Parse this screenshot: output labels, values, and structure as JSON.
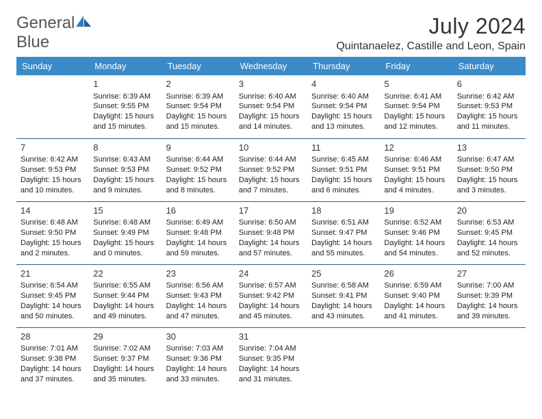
{
  "logo": {
    "line1": "General",
    "line2": "Blue"
  },
  "title": "July 2024",
  "location": "Quintanaelez, Castille and Leon, Spain",
  "colors": {
    "header_bg": "#3b8bc9",
    "header_fg": "#ffffff",
    "rule": "#2a5e8a",
    "logo_blue": "#2f7fbf"
  },
  "weekdays": [
    "Sunday",
    "Monday",
    "Tuesday",
    "Wednesday",
    "Thursday",
    "Friday",
    "Saturday"
  ],
  "weeks": [
    [
      {
        "day": "",
        "lines": []
      },
      {
        "day": "1",
        "lines": [
          "Sunrise: 6:39 AM",
          "Sunset: 9:55 PM",
          "Daylight: 15 hours and 15 minutes."
        ]
      },
      {
        "day": "2",
        "lines": [
          "Sunrise: 6:39 AM",
          "Sunset: 9:54 PM",
          "Daylight: 15 hours and 15 minutes."
        ]
      },
      {
        "day": "3",
        "lines": [
          "Sunrise: 6:40 AM",
          "Sunset: 9:54 PM",
          "Daylight: 15 hours and 14 minutes."
        ]
      },
      {
        "day": "4",
        "lines": [
          "Sunrise: 6:40 AM",
          "Sunset: 9:54 PM",
          "Daylight: 15 hours and 13 minutes."
        ]
      },
      {
        "day": "5",
        "lines": [
          "Sunrise: 6:41 AM",
          "Sunset: 9:54 PM",
          "Daylight: 15 hours and 12 minutes."
        ]
      },
      {
        "day": "6",
        "lines": [
          "Sunrise: 6:42 AM",
          "Sunset: 9:53 PM",
          "Daylight: 15 hours and 11 minutes."
        ]
      }
    ],
    [
      {
        "day": "7",
        "lines": [
          "Sunrise: 6:42 AM",
          "Sunset: 9:53 PM",
          "Daylight: 15 hours and 10 minutes."
        ]
      },
      {
        "day": "8",
        "lines": [
          "Sunrise: 6:43 AM",
          "Sunset: 9:53 PM",
          "Daylight: 15 hours and 9 minutes."
        ]
      },
      {
        "day": "9",
        "lines": [
          "Sunrise: 6:44 AM",
          "Sunset: 9:52 PM",
          "Daylight: 15 hours and 8 minutes."
        ]
      },
      {
        "day": "10",
        "lines": [
          "Sunrise: 6:44 AM",
          "Sunset: 9:52 PM",
          "Daylight: 15 hours and 7 minutes."
        ]
      },
      {
        "day": "11",
        "lines": [
          "Sunrise: 6:45 AM",
          "Sunset: 9:51 PM",
          "Daylight: 15 hours and 6 minutes."
        ]
      },
      {
        "day": "12",
        "lines": [
          "Sunrise: 6:46 AM",
          "Sunset: 9:51 PM",
          "Daylight: 15 hours and 4 minutes."
        ]
      },
      {
        "day": "13",
        "lines": [
          "Sunrise: 6:47 AM",
          "Sunset: 9:50 PM",
          "Daylight: 15 hours and 3 minutes."
        ]
      }
    ],
    [
      {
        "day": "14",
        "lines": [
          "Sunrise: 6:48 AM",
          "Sunset: 9:50 PM",
          "Daylight: 15 hours and 2 minutes."
        ]
      },
      {
        "day": "15",
        "lines": [
          "Sunrise: 6:48 AM",
          "Sunset: 9:49 PM",
          "Daylight: 15 hours and 0 minutes."
        ]
      },
      {
        "day": "16",
        "lines": [
          "Sunrise: 6:49 AM",
          "Sunset: 9:48 PM",
          "Daylight: 14 hours and 59 minutes."
        ]
      },
      {
        "day": "17",
        "lines": [
          "Sunrise: 6:50 AM",
          "Sunset: 9:48 PM",
          "Daylight: 14 hours and 57 minutes."
        ]
      },
      {
        "day": "18",
        "lines": [
          "Sunrise: 6:51 AM",
          "Sunset: 9:47 PM",
          "Daylight: 14 hours and 55 minutes."
        ]
      },
      {
        "day": "19",
        "lines": [
          "Sunrise: 6:52 AM",
          "Sunset: 9:46 PM",
          "Daylight: 14 hours and 54 minutes."
        ]
      },
      {
        "day": "20",
        "lines": [
          "Sunrise: 6:53 AM",
          "Sunset: 9:45 PM",
          "Daylight: 14 hours and 52 minutes."
        ]
      }
    ],
    [
      {
        "day": "21",
        "lines": [
          "Sunrise: 6:54 AM",
          "Sunset: 9:45 PM",
          "Daylight: 14 hours and 50 minutes."
        ]
      },
      {
        "day": "22",
        "lines": [
          "Sunrise: 6:55 AM",
          "Sunset: 9:44 PM",
          "Daylight: 14 hours and 49 minutes."
        ]
      },
      {
        "day": "23",
        "lines": [
          "Sunrise: 6:56 AM",
          "Sunset: 9:43 PM",
          "Daylight: 14 hours and 47 minutes."
        ]
      },
      {
        "day": "24",
        "lines": [
          "Sunrise: 6:57 AM",
          "Sunset: 9:42 PM",
          "Daylight: 14 hours and 45 minutes."
        ]
      },
      {
        "day": "25",
        "lines": [
          "Sunrise: 6:58 AM",
          "Sunset: 9:41 PM",
          "Daylight: 14 hours and 43 minutes."
        ]
      },
      {
        "day": "26",
        "lines": [
          "Sunrise: 6:59 AM",
          "Sunset: 9:40 PM",
          "Daylight: 14 hours and 41 minutes."
        ]
      },
      {
        "day": "27",
        "lines": [
          "Sunrise: 7:00 AM",
          "Sunset: 9:39 PM",
          "Daylight: 14 hours and 39 minutes."
        ]
      }
    ],
    [
      {
        "day": "28",
        "lines": [
          "Sunrise: 7:01 AM",
          "Sunset: 9:38 PM",
          "Daylight: 14 hours and 37 minutes."
        ]
      },
      {
        "day": "29",
        "lines": [
          "Sunrise: 7:02 AM",
          "Sunset: 9:37 PM",
          "Daylight: 14 hours and 35 minutes."
        ]
      },
      {
        "day": "30",
        "lines": [
          "Sunrise: 7:03 AM",
          "Sunset: 9:36 PM",
          "Daylight: 14 hours and 33 minutes."
        ]
      },
      {
        "day": "31",
        "lines": [
          "Sunrise: 7:04 AM",
          "Sunset: 9:35 PM",
          "Daylight: 14 hours and 31 minutes."
        ]
      },
      {
        "day": "",
        "lines": []
      },
      {
        "day": "",
        "lines": []
      },
      {
        "day": "",
        "lines": []
      }
    ]
  ]
}
